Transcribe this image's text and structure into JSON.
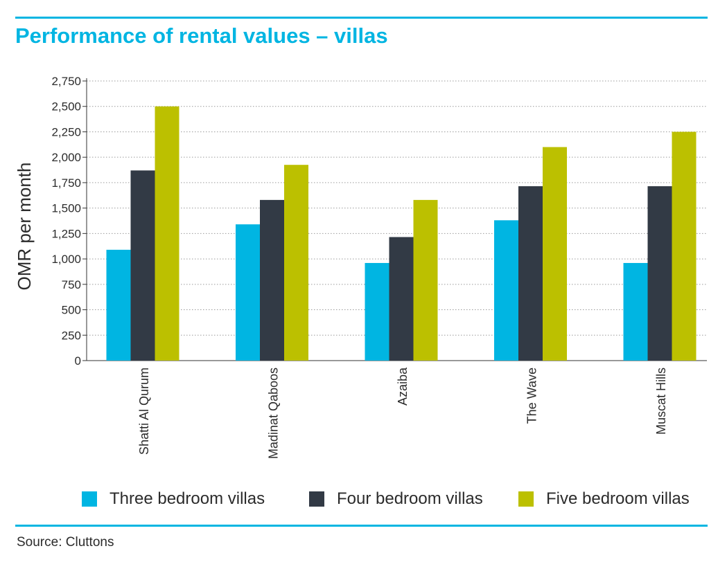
{
  "title": "Performance of rental values – villas",
  "source": "Source: Cluttons",
  "colors": {
    "accent": "#00b5e2",
    "three_bedroom": "#00b5e2",
    "four_bedroom": "#323a45",
    "five_bedroom": "#bcc000",
    "grid": "#9a9a9a",
    "text": "#2b2b2b"
  },
  "chart_data": {
    "type": "bar",
    "title": "Performance of rental values – villas",
    "xlabel": "",
    "ylabel": "OMR per month",
    "ylim": [
      0,
      2750
    ],
    "yticks": [
      "0",
      "250",
      "500",
      "750",
      "1,000",
      "1,250",
      "1,500",
      "1,750",
      "2,000",
      "2,250",
      "2,500",
      "2,750"
    ],
    "ytick_values": [
      0,
      250,
      500,
      750,
      1000,
      1250,
      1500,
      1750,
      2000,
      2250,
      2500,
      2750
    ],
    "grid": true,
    "legend_position": "bottom",
    "categories": [
      "Shatti Al Qurum",
      "Madinat Qaboos",
      "Azaiba",
      "The Wave",
      "Muscat Hills"
    ],
    "series": [
      {
        "name": "Three bedroom villas",
        "color": "#00b5e2",
        "values": [
          1090,
          1340,
          960,
          1380,
          960
        ]
      },
      {
        "name": "Four bedroom villas",
        "color": "#323a45",
        "values": [
          1870,
          1580,
          1215,
          1715,
          1715
        ]
      },
      {
        "name": "Five bedroom villas",
        "color": "#bcc000",
        "values": [
          2500,
          1925,
          1580,
          2100,
          2250
        ]
      }
    ]
  }
}
